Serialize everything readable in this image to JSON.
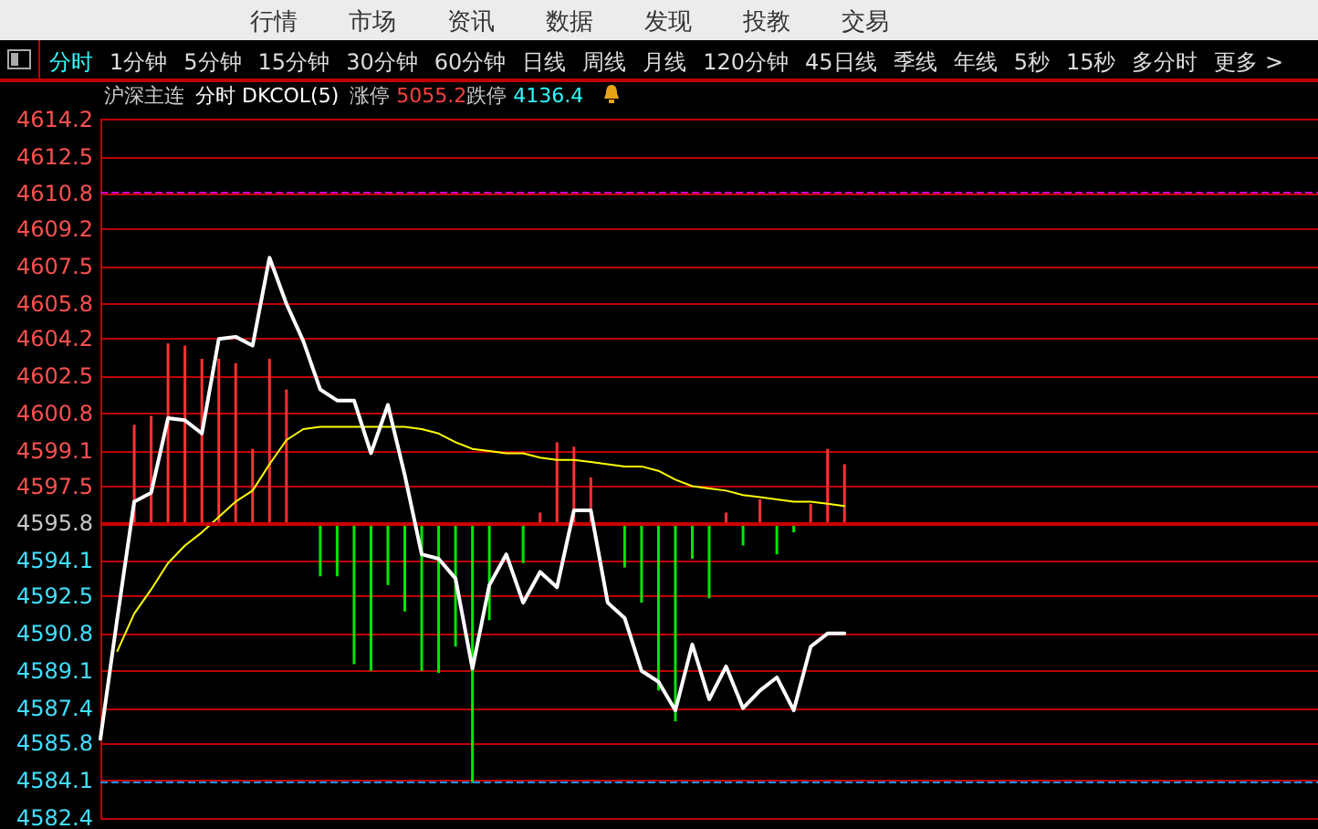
{
  "chart_data": {
    "type": "line",
    "title": "沪深主连",
    "subtitle": "分时 DKCOL(5)",
    "annotations": [
      "行情",
      "市场",
      "资讯",
      "数据",
      "发现",
      "投教",
      "交易",
      "分时",
      "1分钟",
      "5分钟",
      "15分钟",
      "30分钟",
      "60分钟",
      "日线",
      "周线",
      "月线",
      "120分钟",
      "45日线",
      "季线",
      "年线",
      "5秒",
      "15秒",
      "多分时",
      "更多 >",
      "涨停 5055.2",
      "跌停 4136.4"
    ],
    "categories": [
      null,
      null,
      null,
      null,
      null,
      null,
      null,
      null,
      null,
      null,
      null,
      null,
      null,
      null,
      null,
      null,
      null,
      null,
      null,
      null,
      null,
      null,
      null,
      null,
      null,
      null,
      null,
      null,
      null,
      null,
      null,
      null,
      null,
      null,
      null,
      null,
      null,
      null,
      null,
      null,
      null,
      null,
      null,
      null,
      null,
      null,
      null,
      null,
      null,
      null,
      null,
      null,
      null,
      null,
      null,
      null,
      null,
      null,
      null,
      null,
      null,
      null,
      null,
      null,
      null,
      null,
      null,
      null,
      null,
      null,
      null,
      null,
      null
    ],
    "series": [
      {
        "type": "bar",
        "base": [
          null,
          null,
          4595.8,
          4595.8,
          4595.8,
          4595.8,
          4595.8,
          4595.8,
          4595.8,
          4595.8,
          4595.8,
          4595.8,
          null,
          4595.8,
          4595.8,
          4595.8,
          4595.8,
          4595.8,
          4595.8,
          4595.8,
          4595.8,
          4595.8,
          4595.8,
          4595.8,
          null,
          4595.8,
          4595.8,
          4595.8,
          4595.8,
          4595.8,
          null,
          4595.8,
          4595.8,
          4595.8,
          4595.8,
          4595.8,
          4595.8,
          4595.8,
          4595.8,
          4595.8,
          4595.8,
          4595.8,
          4595.8,
          4595.8,
          4595.8,
          null,
          null,
          null,
          null,
          null,
          null,
          null,
          null,
          null,
          null,
          null,
          null,
          null,
          null,
          null,
          null,
          null,
          null,
          null,
          null,
          null,
          null,
          null,
          null,
          null,
          null,
          null,
          null
        ],
        "values": [
          null,
          null,
          4.5,
          4.9,
          8.2,
          8.1,
          7.5,
          7.5,
          7.3,
          3.4,
          7.5,
          6.1,
          null,
          -2.4,
          -2.4,
          -6.4,
          -6.7,
          -2.8,
          -4.0,
          -6.7,
          -6.8,
          -5.6,
          -11.8,
          -4.4,
          null,
          -1.8,
          0.5,
          3.7,
          3.5,
          2.1,
          null,
          -2.0,
          -3.6,
          -7.6,
          -9.0,
          -1.6,
          -3.4,
          0.5,
          -1.0,
          1.1,
          -1.4,
          -0.4,
          0.9,
          3.4,
          2.7,
          null,
          null,
          null,
          null,
          null,
          null,
          null,
          null,
          null,
          null,
          null,
          null,
          null,
          null,
          null,
          null,
          null,
          null,
          null,
          null,
          null,
          null,
          null,
          null,
          null,
          null,
          null,
          null
        ],
        "colors": [
          null,
          null,
          "#ff3232",
          "#ff3232",
          "#ff3232",
          "#ff3232",
          "#ff3232",
          "#ff3232",
          "#ff3232",
          "#ff3232",
          "#ff3232",
          "#ff3232",
          null,
          "#00e600",
          "#00e600",
          "#00e600",
          "#00e600",
          "#00e600",
          "#00e600",
          "#00e600",
          "#00e600",
          "#00e600",
          "#00e600",
          "#00e600",
          null,
          "#00e600",
          "#ff3232",
          "#ff3232",
          "#ff3232",
          "#ff3232",
          null,
          "#00e600",
          "#00e600",
          "#00e600",
          "#00e600",
          "#00e600",
          "#00e600",
          "#ff3232",
          "#00e600",
          "#ff3232",
          "#00e600",
          "#00e600",
          "#ff3232",
          "#ff3232",
          "#ff3232",
          null,
          null,
          null,
          null,
          null,
          null,
          null,
          null,
          null,
          null,
          null,
          null,
          null,
          null,
          null,
          null,
          null,
          null,
          null,
          null,
          null,
          null,
          null,
          null,
          null,
          null,
          null,
          null
        ]
      },
      {
        "type": "line",
        "color": "#ffff00",
        "values": [
          null,
          4590.0,
          4591.7,
          4592.8,
          4594.0,
          4594.8,
          4595.4,
          4596.1,
          4596.8,
          4597.3,
          4598.5,
          4599.6,
          4600.1,
          4600.2,
          4600.2,
          4600.2,
          4600.2,
          4600.2,
          4600.2,
          4600.1,
          4599.9,
          4599.5,
          4599.2,
          4599.1,
          4599.0,
          4599.0,
          4598.8,
          4598.7,
          4598.7,
          4598.6,
          4598.5,
          4598.4,
          4598.4,
          4598.2,
          4597.8,
          4597.5,
          4597.4,
          4597.3,
          4597.1,
          4597.0,
          4596.9,
          4596.8,
          4596.8,
          4596.7,
          4596.6,
          null,
          null,
          null,
          null,
          null,
          null,
          null,
          null,
          null,
          null,
          null,
          null,
          null,
          null,
          null,
          null,
          null,
          null,
          null,
          null,
          null,
          null,
          null,
          null,
          null,
          null,
          null,
          null
        ]
      },
      {
        "color": "#ffffff",
        "values": [
          4586.0,
          4591.5,
          4596.8,
          4597.2,
          4600.6,
          4600.5,
          4599.9,
          4604.2,
          4604.3,
          4603.9,
          4607.9,
          4605.8,
          4604.1,
          4601.9,
          4601.4,
          4601.4,
          4599.0,
          4601.2,
          4598.0,
          4594.4,
          4594.2,
          4593.3,
          4589.2,
          4593.0,
          4594.4,
          4592.2,
          4593.6,
          4592.9,
          4596.4,
          4596.4,
          4592.2,
          4591.5,
          4589.1,
          4588.6,
          4587.3,
          4590.3,
          4587.8,
          4589.3,
          4587.4,
          4588.2,
          4588.8,
          4587.3,
          4590.2,
          4590.8,
          4590.8,
          null,
          null,
          null,
          null,
          null,
          null,
          null,
          null,
          null,
          null,
          null,
          null,
          null,
          null,
          null,
          null,
          null,
          null,
          null,
          null,
          null,
          null,
          null,
          null,
          null,
          null,
          null,
          null
        ]
      }
    ],
    "ylim": [
      4582.4,
      4614.2
    ],
    "yticks": [
      4582.4,
      4584.1,
      4585.8,
      4587.4,
      4589.1,
      4590.8,
      4592.5,
      4594.1,
      4595.8,
      4597.5,
      4599.1,
      4600.8,
      4602.5,
      4604.2,
      4605.8,
      4607.5,
      4609.2,
      4610.8,
      4612.5,
      4614.2
    ],
    "ref_lines": [
      {
        "axis": "y",
        "value": 4595.8,
        "color": "#cc0000",
        "line_style": "solid"
      },
      {
        "axis": "y",
        "value": 4610.9,
        "color": "#cc00cc",
        "line_style": "dashed"
      },
      {
        "axis": "y",
        "value": 4584.0,
        "color": "#1e90ff",
        "line_style": "dashed"
      }
    ],
    "grid": true,
    "tick_labels": "y",
    "marker": "none"
  }
}
